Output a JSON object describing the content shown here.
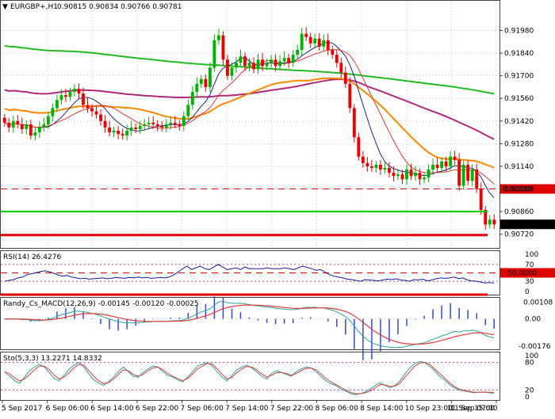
{
  "header": {
    "symbol": "EURGBP+,H1",
    "ohlc": "0.90815 0.90834 0.90766 0.90781"
  },
  "indicators": {
    "rsi_label": "RSI(14) 26.4276",
    "macd_label": "Randy_Cs_MACD(12,26,9) -0.00145 -0.00120 -0.00025",
    "sto_label": "Sto(5,3,3) 13.2271 14.8332"
  },
  "colors": {
    "bull": "#00b300",
    "bear": "#ee0000",
    "ma_green": "#22bb22",
    "ma_purple": "#b0287a",
    "ma_orange": "#ff8800",
    "ma_navy": "#1a237e",
    "ma_red": "#e53935",
    "level_red": "#e00000",
    "level_green": "#00cc00",
    "grid": "#c8c8c8",
    "frame": "#444444",
    "rsi_line": "#1a1aa0",
    "macd_hist": "#3344ee",
    "macd_signal": "#e53935",
    "macd_main": "#26a69a",
    "sto_main": "#26a69a",
    "sto_signal": "#e53935"
  },
  "chart_data": {
    "type": "candlestick",
    "x_tick_labels": [
      "5 Sep 2017",
      "6 Sep 06:00",
      "6 Sep 14:00",
      "6 Sep 22:00",
      "7 Sep 06:00",
      "7 Sep 14:00",
      "7 Sep 22:00",
      "8 Sep 06:00",
      "8 Sep 14:00",
      "10 Sep 23:00",
      "11 Sep 07:00",
      "11 Sep 15:00"
    ],
    "price_axis": {
      "ylim": [
        0.9065,
        0.921
      ],
      "ticks": [
        "0.91980",
        "0.91840",
        "0.91700",
        "0.91560",
        "0.91420",
        "0.91280",
        "0.91140",
        "0.91000",
        "0.90860",
        "0.90720"
      ],
      "tick_values": [
        0.9198,
        0.9184,
        0.917,
        0.9156,
        0.9142,
        0.9128,
        0.9114,
        0.91,
        0.9086,
        0.9072
      ],
      "level_label": "0.91000",
      "level_value": 0.91,
      "current_label": "0.90781",
      "current_value": 0.90781,
      "green_level": 0.9086,
      "red_level": 0.90715
    },
    "closes": [
      0.9141,
      0.9138,
      0.9142,
      0.914,
      0.9137,
      0.914,
      0.9133,
      0.9135,
      0.9138,
      0.914,
      0.9145,
      0.915,
      0.9155,
      0.9158,
      0.9157,
      0.916,
      0.9162,
      0.9159,
      0.9152,
      0.915,
      0.9148,
      0.9146,
      0.9142,
      0.9138,
      0.9135,
      0.9136,
      0.9134,
      0.9133,
      0.9136,
      0.9138,
      0.9137,
      0.9139,
      0.914,
      0.9141,
      0.914,
      0.9139,
      0.9138,
      0.914,
      0.9141,
      0.914,
      0.9139,
      0.9145,
      0.9152,
      0.916,
      0.9165,
      0.9168,
      0.9163,
      0.9175,
      0.9192,
      0.9195,
      0.918,
      0.917,
      0.9175,
      0.9178,
      0.9182,
      0.9176,
      0.9178,
      0.9174,
      0.918,
      0.9176,
      0.9178,
      0.918,
      0.9176,
      0.9179,
      0.9181,
      0.9178,
      0.9183,
      0.9186,
      0.9196,
      0.9194,
      0.919,
      0.9193,
      0.9188,
      0.9192,
      0.9186,
      0.9183,
      0.9178,
      0.9172,
      0.9165,
      0.915,
      0.9132,
      0.912,
      0.9116,
      0.9114,
      0.9113,
      0.9115,
      0.9112,
      0.9113,
      0.911,
      0.9108,
      0.9109,
      0.9106,
      0.9112,
      0.9108,
      0.911,
      0.9106,
      0.9107,
      0.9112,
      0.9115,
      0.9113,
      0.9117,
      0.9114,
      0.912,
      0.9118,
      0.9102,
      0.9115,
      0.9105,
      0.9112,
      0.91,
      0.9087,
      0.9078,
      0.9081,
      0.90781
    ],
    "moving_averages": [
      {
        "values_start": 0.9197,
        "values_end": 0.9162
      },
      {
        "values_start": 0.9178,
        "values_end": 0.9148
      },
      {
        "values_start": 0.9166,
        "values_end": 0.9128
      },
      {
        "values_start": 0.9141,
        "values_end": 0.9095
      },
      {
        "values_start": 0.9141,
        "values_end": 0.9102
      }
    ],
    "rsi": {
      "levels": [
        70,
        50,
        30
      ],
      "level_labels": [
        "70",
        "50.0000",
        "30"
      ],
      "ylim": [
        0,
        100
      ],
      "y_ticks": [
        "100",
        "0"
      ],
      "values": [
        30,
        32,
        34,
        38,
        40,
        45,
        48,
        50,
        53,
        55,
        53,
        49,
        45,
        42,
        44,
        40,
        38,
        36,
        37,
        35,
        36,
        37,
        38,
        36,
        37,
        39,
        38,
        37,
        39,
        38,
        40,
        38,
        39,
        37,
        38,
        39,
        38,
        40,
        45,
        52,
        60,
        66,
        58,
        62,
        66,
        60,
        58,
        64,
        70,
        64,
        58,
        60,
        62,
        58,
        64,
        60,
        60,
        60,
        60,
        62,
        60,
        60,
        60,
        62,
        60,
        58,
        62,
        66,
        63,
        60,
        56,
        58,
        52,
        46,
        42,
        40,
        38,
        35,
        34,
        32,
        30,
        34,
        33,
        32,
        31,
        33,
        35,
        34,
        36,
        33,
        32,
        30,
        34,
        33,
        35,
        31,
        33,
        36,
        38,
        37,
        38,
        40,
        36,
        38,
        33,
        31,
        30,
        28,
        26,
        27,
        26
      ]
    },
    "macd": {
      "y_ticks": [
        "0.00108",
        "0.00",
        "-0.00176"
      ],
      "ylim": [
        -0.0019,
        0.0013
      ]
    },
    "stochastic": {
      "levels": [
        80,
        20
      ],
      "y_ticks": [
        "100",
        "80",
        "20",
        "0"
      ],
      "ylim": [
        0,
        100
      ],
      "main": [
        58,
        50,
        40,
        35,
        48,
        62,
        70,
        76,
        70,
        58,
        45,
        40,
        52,
        65,
        74,
        80,
        70,
        55,
        42,
        35,
        30,
        38,
        48,
        60,
        70,
        60,
        50,
        48,
        58,
        66,
        72,
        70,
        60,
        52,
        48,
        42,
        38,
        48,
        60,
        72,
        76,
        80,
        72,
        60,
        48,
        40,
        52,
        64,
        70,
        74,
        68,
        60,
        50,
        44,
        56,
        62,
        58,
        54,
        50,
        60,
        66,
        70,
        68,
        60,
        50,
        40,
        34,
        30,
        22,
        18,
        12,
        10,
        12,
        16,
        22,
        30,
        36,
        30,
        25,
        30,
        40,
        55,
        68,
        78,
        82,
        80,
        72,
        62,
        50,
        42,
        32,
        25,
        20,
        18,
        16,
        14,
        15,
        16,
        14,
        13
      ],
      "signal": [
        60,
        55,
        46,
        40,
        44,
        54,
        64,
        72,
        72,
        64,
        52,
        44,
        48,
        58,
        68,
        76,
        74,
        62,
        50,
        40,
        34,
        36,
        44,
        54,
        64,
        62,
        54,
        50,
        54,
        62,
        68,
        70,
        64,
        56,
        50,
        45,
        40,
        45,
        55,
        66,
        72,
        78,
        76,
        66,
        54,
        44,
        48,
        58,
        66,
        71,
        70,
        64,
        55,
        48,
        52,
        58,
        58,
        56,
        52,
        56,
        62,
        67,
        68,
        64,
        55,
        45,
        38,
        32,
        26,
        20,
        15,
        12,
        12,
        14,
        18,
        25,
        32,
        31,
        28,
        28,
        35,
        48,
        60,
        72,
        79,
        80,
        76,
        66,
        56,
        46,
        36,
        28,
        22,
        19,
        17,
        15,
        15,
        15,
        15,
        14.8
      ]
    }
  }
}
